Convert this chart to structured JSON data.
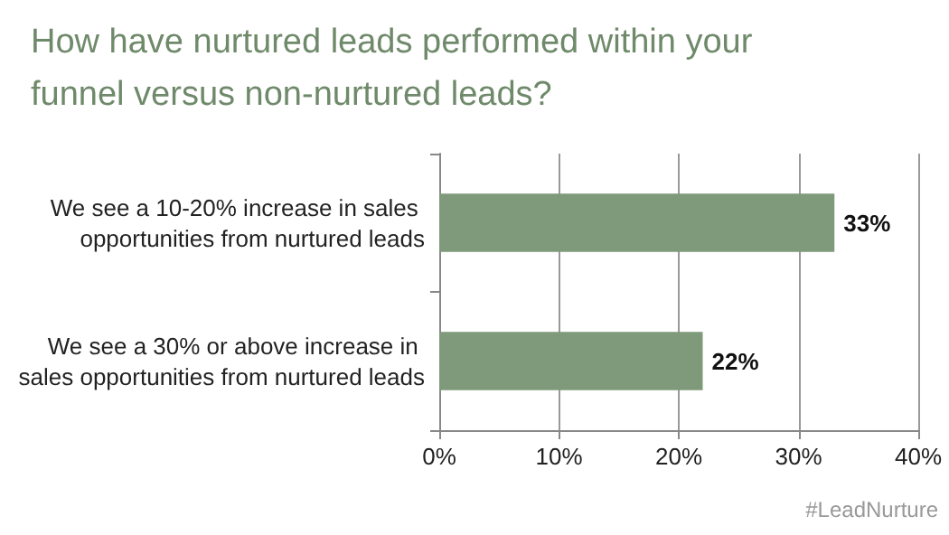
{
  "chart_data": {
    "type": "bar",
    "orientation": "horizontal",
    "title": "How have nurtured leads performed within your funnel versus non-nurtured leads?",
    "categories": [
      "We see a 10-20% increase in sales opportunities from nurtured leads",
      "We see a 30% or above increase in sales opportunities from nurtured leads"
    ],
    "values": [
      33,
      22
    ],
    "value_labels": [
      "33%",
      "22%"
    ],
    "color": "#7f9a7a",
    "xlim": [
      0,
      40
    ],
    "xticks": [
      {
        "value": 0,
        "label": "0%"
      },
      {
        "value": 10,
        "label": "10%"
      },
      {
        "value": 20,
        "label": "20%"
      },
      {
        "value": 30,
        "label": "30%"
      },
      {
        "value": 40,
        "label": "40%"
      }
    ],
    "grid": "x",
    "annotations": [
      "#LeadNurture"
    ]
  }
}
